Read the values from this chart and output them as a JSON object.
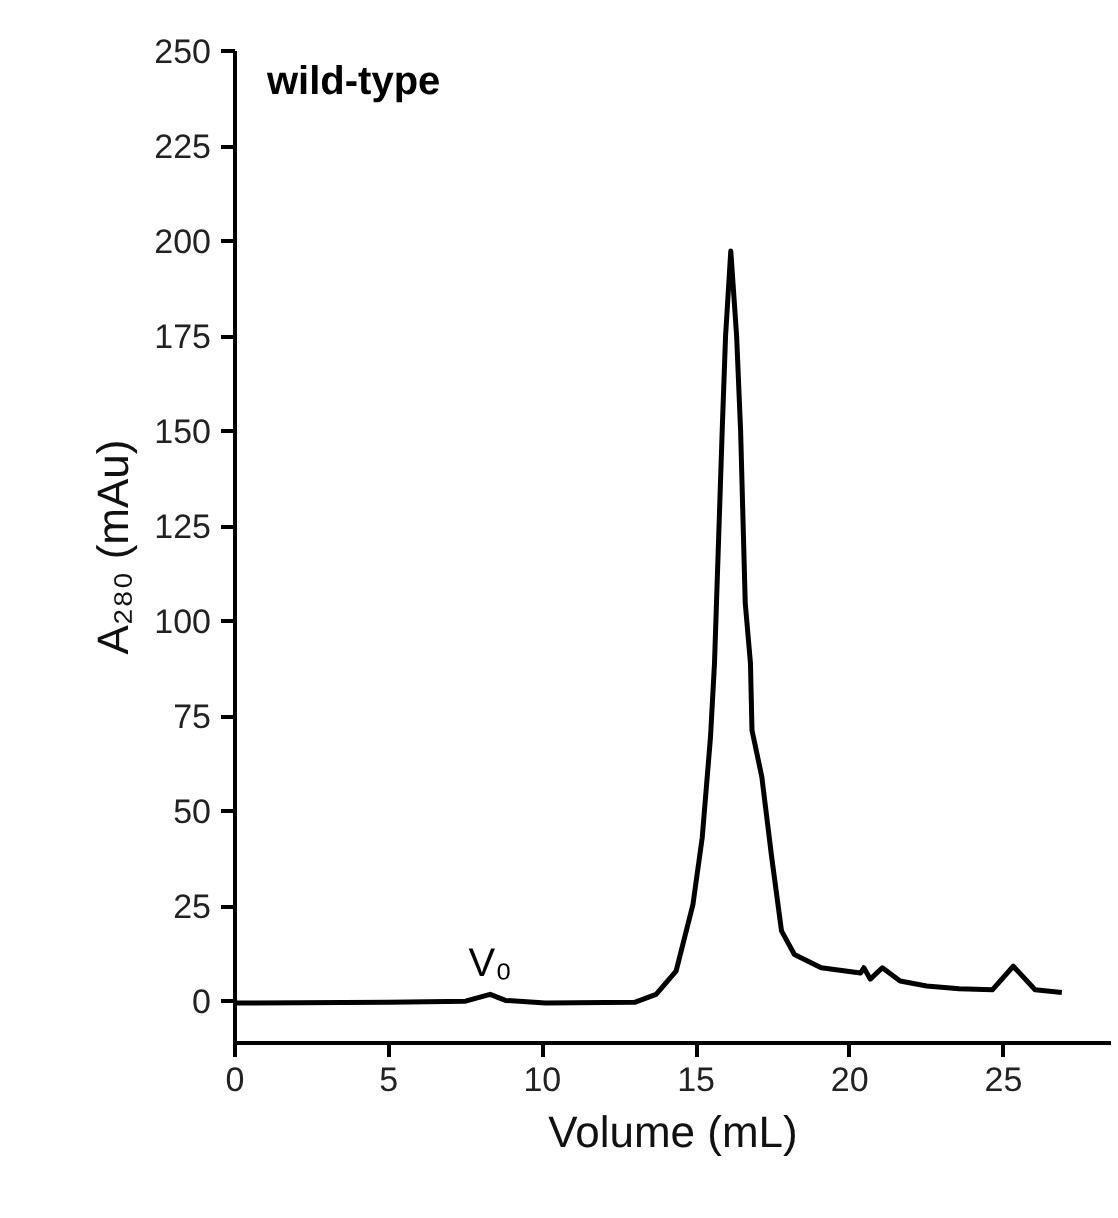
{
  "chart_data": {
    "type": "line",
    "title": "wild-type",
    "xlabel": "Volume (mL)",
    "ylabel": "A₂₈₀ (mAu)",
    "x": [
      0,
      5,
      7.5,
      8.3,
      8.8,
      10.1,
      13.0,
      13.7,
      14.35,
      14.9,
      15.2,
      15.47,
      15.6,
      15.85,
      15.96,
      16.13,
      16.32,
      16.45,
      16.6,
      16.77,
      16.82,
      17.14,
      17.46,
      17.78,
      18.2,
      19.07,
      20.35,
      20.46,
      20.67,
      21.06,
      21.64,
      22.5,
      23.56,
      24.64,
      25.32,
      26.03,
      26.9
    ],
    "series": [
      {
        "color": "#000000",
        "values": [
          -0.5,
          -0.3,
          0,
          1.8,
          0.2,
          -0.5,
          -0.3,
          1.8,
          7.9,
          25.5,
          43,
          69.5,
          88.9,
          150,
          175,
          197.4,
          175,
          150,
          104.8,
          88.9,
          71.3,
          59,
          37.9,
          18.5,
          12.3,
          8.8,
          7.4,
          8.8,
          5.8,
          8.8,
          5.3,
          4.0,
          3.3,
          3.0,
          9.2,
          3.0,
          2.3
        ]
      }
    ],
    "xlim": [
      0,
      28.5
    ],
    "ylim": [
      -11,
      250
    ],
    "xticks": [
      0,
      5,
      10,
      15,
      20,
      25
    ],
    "yticks": [
      0,
      25,
      50,
      75,
      100,
      125,
      150,
      175,
      200,
      225,
      250
    ],
    "grid": false,
    "line_style": "solid",
    "marker": "none",
    "annotations": [
      {
        "text": "V₀",
        "x": 8.3,
        "y": 1.8
      }
    ]
  }
}
